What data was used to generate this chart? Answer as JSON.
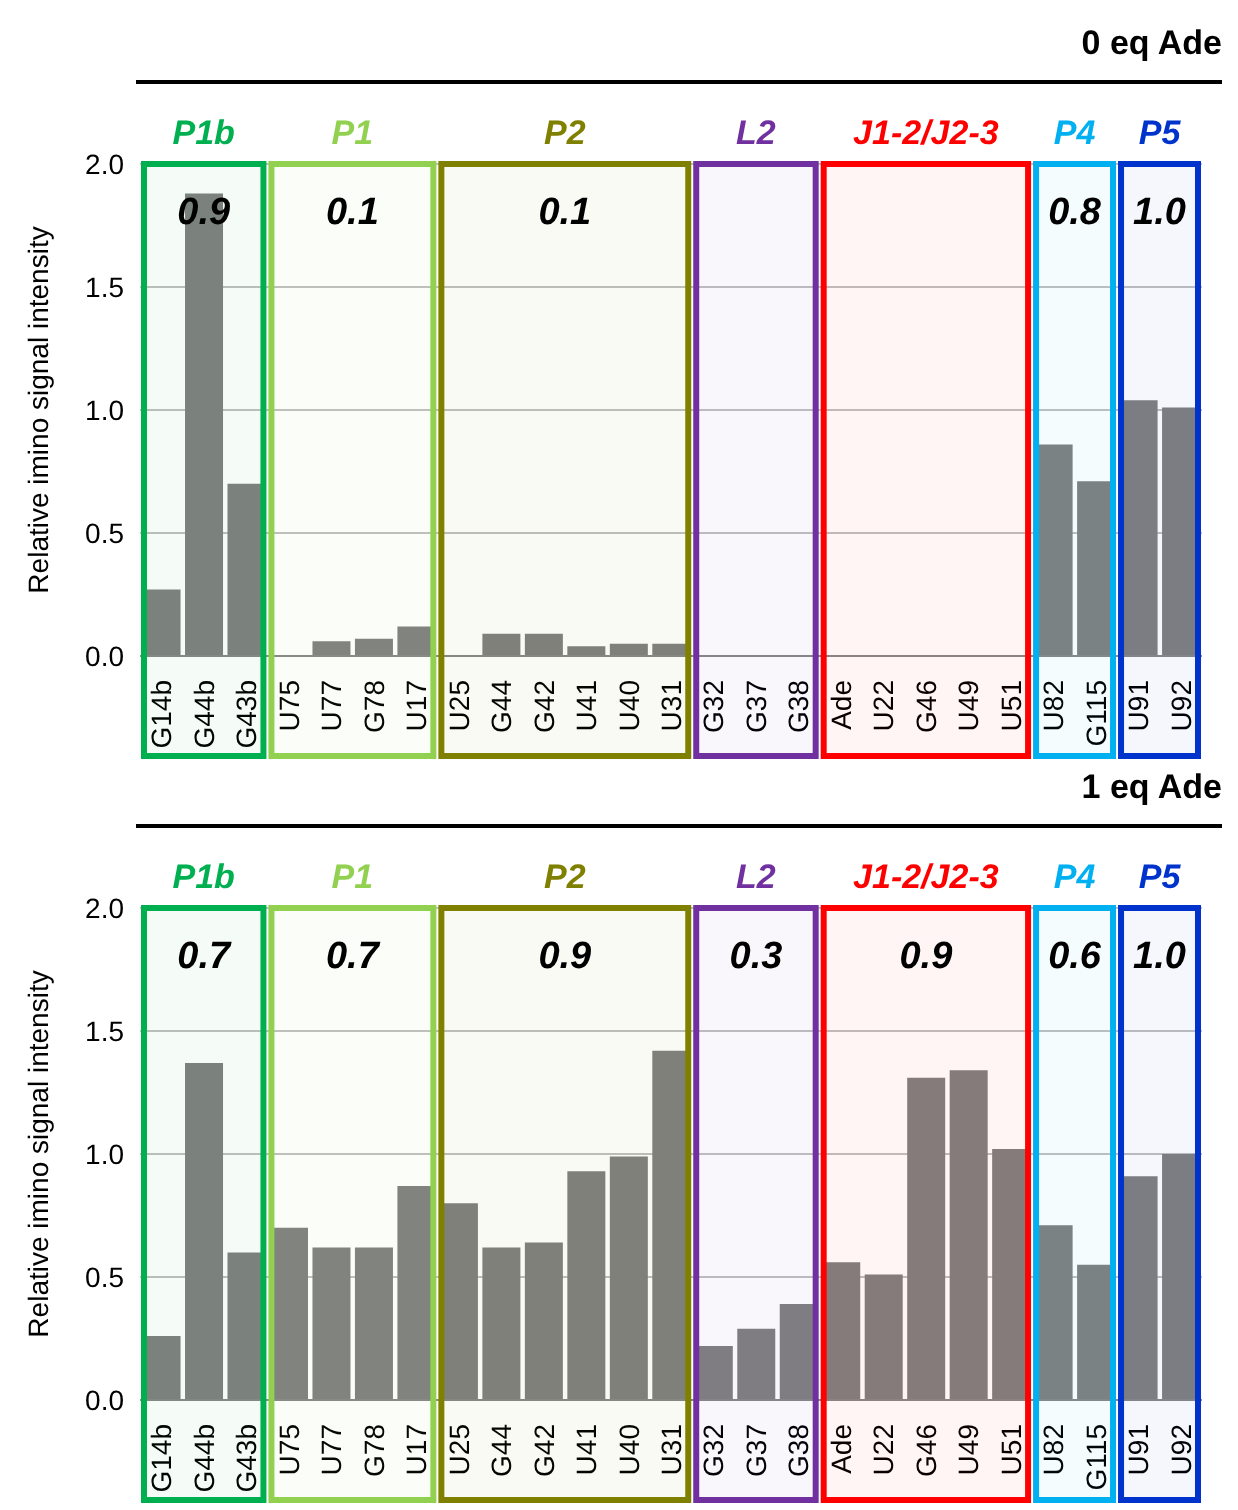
{
  "chart_data": [
    {
      "type": "bar",
      "title": "0 eq Ade",
      "ylabel": "Relative imino signal intensity",
      "categories": [
        "G14b",
        "G44b",
        "G43b",
        "U75",
        "U77",
        "G78",
        "U17",
        "U25",
        "G44",
        "G42",
        "U41",
        "U40",
        "U31",
        "G32",
        "G37",
        "G38",
        "Ade",
        "U22",
        "G46",
        "U49",
        "U51",
        "U82",
        "G115",
        "U91",
        "U92"
      ],
      "values": [
        0.27,
        1.88,
        0.7,
        0,
        0.06,
        0.07,
        0.12,
        0,
        0.09,
        0.09,
        0.04,
        0.05,
        0.05,
        0,
        0,
        0,
        0,
        0,
        0,
        0,
        0,
        0.86,
        0.71,
        1.04,
        1.01
      ],
      "color": "#808080",
      "ylim": [
        0,
        2
      ],
      "yticks": [
        {
          "value": 0,
          "label": "0.0"
        },
        {
          "value": 0.5,
          "label": "0.5"
        },
        {
          "value": 1,
          "label": "1.0"
        },
        {
          "value": 1.5,
          "label": "1.5"
        },
        {
          "value": 2,
          "label": "2.0"
        }
      ],
      "grid": "y",
      "bands": [
        {
          "axis": "x",
          "from": "G14b",
          "to": "G43b",
          "label": "P1b",
          "color": "#00b050"
        },
        {
          "axis": "x",
          "from": "U75",
          "to": "U17",
          "label": "P1",
          "color": "#92d050"
        },
        {
          "axis": "x",
          "from": "U25",
          "to": "U31",
          "label": "P2",
          "color": "#808000"
        },
        {
          "axis": "x",
          "from": "G32",
          "to": "G38",
          "label": "L2",
          "color": "#7030a0"
        },
        {
          "axis": "x",
          "from": "Ade",
          "to": "U51",
          "label": "J1-2/J2-3",
          "color": "#ff0000"
        },
        {
          "axis": "x",
          "from": "U82",
          "to": "G115",
          "label": "P4",
          "color": "#00b0f0"
        },
        {
          "axis": "x",
          "from": "U91",
          "to": "U92",
          "label": "P5",
          "color": "#0033cc"
        }
      ],
      "annotations": [
        "0.9",
        "0.1",
        "0.1",
        null,
        null,
        "0.8",
        "1.0"
      ]
    },
    {
      "type": "bar",
      "title": "1 eq Ade",
      "ylabel": "Relative imino signal intensity",
      "categories": [
        "G14b",
        "G44b",
        "G43b",
        "U75",
        "U77",
        "G78",
        "U17",
        "U25",
        "G44",
        "G42",
        "U41",
        "U40",
        "U31",
        "G32",
        "G37",
        "G38",
        "Ade",
        "U22",
        "G46",
        "U49",
        "U51",
        "U82",
        "G115",
        "U91",
        "U92"
      ],
      "values": [
        0.26,
        1.37,
        0.6,
        0.7,
        0.62,
        0.62,
        0.87,
        0.8,
        0.62,
        0.64,
        0.93,
        0.99,
        1.42,
        0.22,
        0.29,
        0.39,
        0.56,
        0.51,
        1.31,
        1.34,
        1.02,
        0.71,
        0.55,
        0.91,
        1.0
      ],
      "color": "#808080",
      "ylim": [
        0,
        2
      ],
      "yticks": [
        {
          "value": 0,
          "label": "0.0"
        },
        {
          "value": 0.5,
          "label": "0.5"
        },
        {
          "value": 1,
          "label": "1.0"
        },
        {
          "value": 1.5,
          "label": "1.5"
        },
        {
          "value": 2,
          "label": "2.0"
        }
      ],
      "grid": "y",
      "bands": [
        {
          "axis": "x",
          "from": "G14b",
          "to": "G43b",
          "label": "P1b",
          "color": "#00b050"
        },
        {
          "axis": "x",
          "from": "U75",
          "to": "U17",
          "label": "P1",
          "color": "#92d050"
        },
        {
          "axis": "x",
          "from": "U25",
          "to": "U31",
          "label": "P2",
          "color": "#808000"
        },
        {
          "axis": "x",
          "from": "G32",
          "to": "G38",
          "label": "L2",
          "color": "#7030a0"
        },
        {
          "axis": "x",
          "from": "Ade",
          "to": "U51",
          "label": "J1-2/J2-3",
          "color": "#ff0000"
        },
        {
          "axis": "x",
          "from": "U82",
          "to": "G115",
          "label": "P4",
          "color": "#00b0f0"
        },
        {
          "axis": "x",
          "from": "U91",
          "to": "U92",
          "label": "P5",
          "color": "#0033cc"
        }
      ],
      "annotations": [
        "0.7",
        "0.7",
        "0.9",
        "0.3",
        "0.9",
        "0.6",
        "1.0"
      ]
    }
  ]
}
